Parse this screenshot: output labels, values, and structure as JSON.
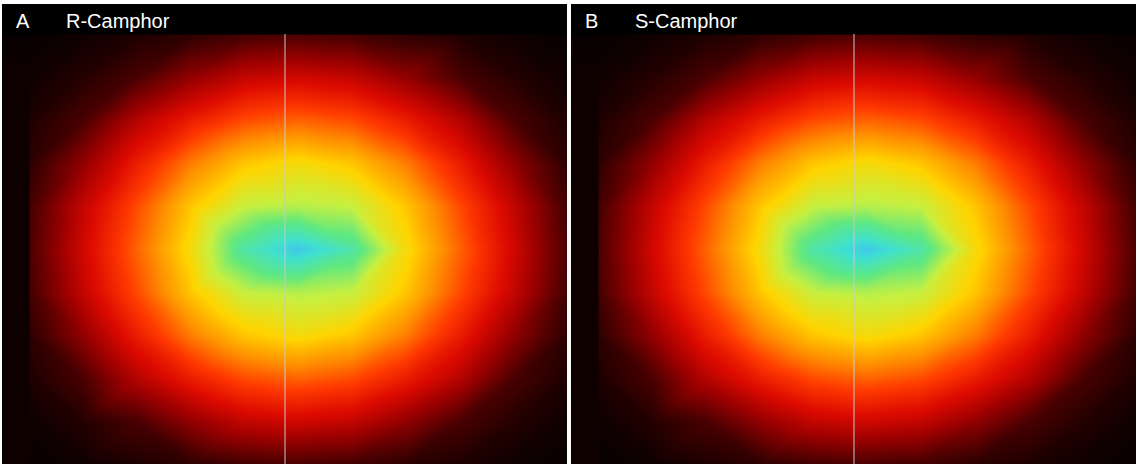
{
  "chart_data": [
    {
      "type": "heatmap",
      "panel": "A",
      "title": "R-Camphor",
      "tick_labels": false,
      "xlim": [
        -1.1,
        1.0
      ],
      "ylim": [
        -1,
        1
      ],
      "clim": [
        0,
        100
      ],
      "x": [
        -1,
        -0.8,
        -0.6,
        -0.4,
        -0.2,
        0,
        0.2,
        0.4,
        0.6,
        0.8,
        1
      ],
      "y": [
        -1,
        -0.8,
        -0.6,
        -0.4,
        -0.2,
        0,
        0.2,
        0.4,
        0.6,
        0.8,
        1
      ],
      "values": [
        [
          1,
          2,
          4,
          6,
          9,
          10,
          9,
          6,
          4,
          2,
          1
        ],
        [
          2,
          5,
          10,
          19,
          26,
          28,
          26,
          19,
          10,
          5,
          2
        ],
        [
          4,
          10,
          24,
          34,
          42,
          45,
          42,
          34,
          24,
          10,
          4
        ],
        [
          6,
          19,
          34,
          48,
          58,
          62,
          58,
          48,
          34,
          19,
          6
        ],
        [
          9,
          26,
          42,
          58,
          70,
          72,
          70,
          58,
          42,
          26,
          9
        ],
        [
          10,
          28,
          45,
          62,
          85,
          95,
          85,
          62,
          45,
          28,
          10
        ],
        [
          9,
          26,
          42,
          58,
          70,
          72,
          70,
          58,
          42,
          26,
          9
        ],
        [
          6,
          19,
          34,
          48,
          58,
          62,
          58,
          48,
          34,
          19,
          6
        ],
        [
          4,
          10,
          24,
          34,
          42,
          45,
          42,
          34,
          24,
          10,
          4
        ],
        [
          2,
          5,
          10,
          19,
          26,
          28,
          26,
          19,
          10,
          5,
          2
        ],
        [
          1,
          2,
          4,
          6,
          9,
          10,
          9,
          6,
          4,
          2,
          1
        ]
      ]
    },
    {
      "type": "heatmap",
      "panel": "B",
      "title": "S-Camphor",
      "tick_labels": false,
      "xlim": [
        -1.1,
        1.0
      ],
      "ylim": [
        -1,
        1
      ],
      "clim": [
        0,
        100
      ],
      "x": [
        -1,
        -0.8,
        -0.6,
        -0.4,
        -0.2,
        0,
        0.2,
        0.4,
        0.6,
        0.8,
        1
      ],
      "y": [
        -1,
        -0.8,
        -0.6,
        -0.4,
        -0.2,
        0,
        0.2,
        0.4,
        0.6,
        0.8,
        1
      ],
      "values": [
        [
          1,
          2,
          4,
          6,
          9,
          10,
          9,
          6,
          4,
          2,
          1
        ],
        [
          2,
          5,
          10,
          19,
          26,
          28,
          26,
          19,
          10,
          5,
          2
        ],
        [
          4,
          10,
          24,
          34,
          42,
          45,
          42,
          34,
          24,
          10,
          4
        ],
        [
          6,
          19,
          34,
          48,
          58,
          62,
          58,
          48,
          34,
          19,
          6
        ],
        [
          9,
          26,
          42,
          58,
          70,
          72,
          70,
          58,
          42,
          26,
          9
        ],
        [
          10,
          28,
          45,
          62,
          85,
          95,
          85,
          62,
          45,
          28,
          10
        ],
        [
          9,
          26,
          42,
          58,
          70,
          72,
          70,
          58,
          42,
          26,
          9
        ],
        [
          6,
          19,
          34,
          48,
          58,
          62,
          58,
          48,
          34,
          19,
          6
        ],
        [
          4,
          10,
          24,
          34,
          42,
          45,
          42,
          34,
          24,
          10,
          4
        ],
        [
          2,
          5,
          10,
          19,
          26,
          28,
          26,
          19,
          10,
          5,
          2
        ],
        [
          1,
          2,
          4,
          6,
          9,
          10,
          9,
          6,
          4,
          2,
          1
        ]
      ]
    }
  ]
}
